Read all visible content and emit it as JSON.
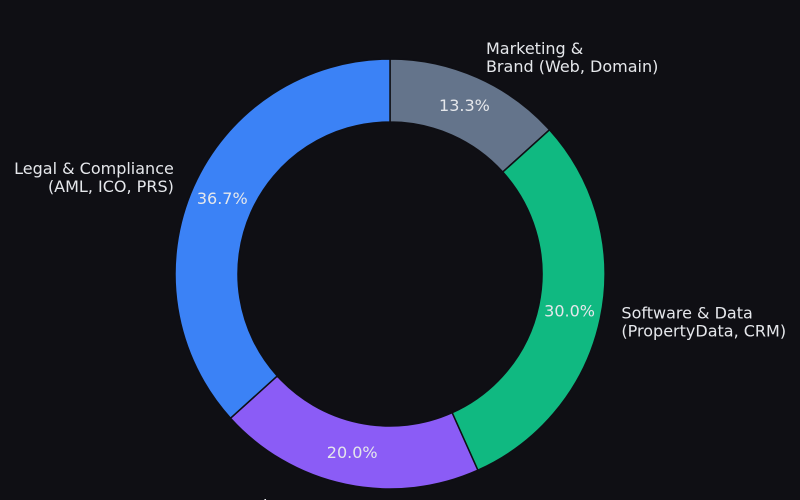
{
  "chart_data": {
    "type": "donut",
    "categories": [
      [
        "Marketing &",
        "Brand (Web, Domain)"
      ],
      [
        "Software & Data",
        "(PropertyData, CRM)"
      ],
      [
        "Insurance"
      ],
      [
        "Legal & Compliance",
        "(AML, ICO, PRS)"
      ]
    ],
    "values": [
      13.3,
      30.0,
      20.0,
      36.7
    ],
    "value_labels": [
      "13.3%",
      "30.0%",
      "20.0%",
      "36.7%"
    ],
    "colors": [
      "#64748b",
      "#10b981",
      "#8b5cf6",
      "#3b82f6"
    ]
  }
}
